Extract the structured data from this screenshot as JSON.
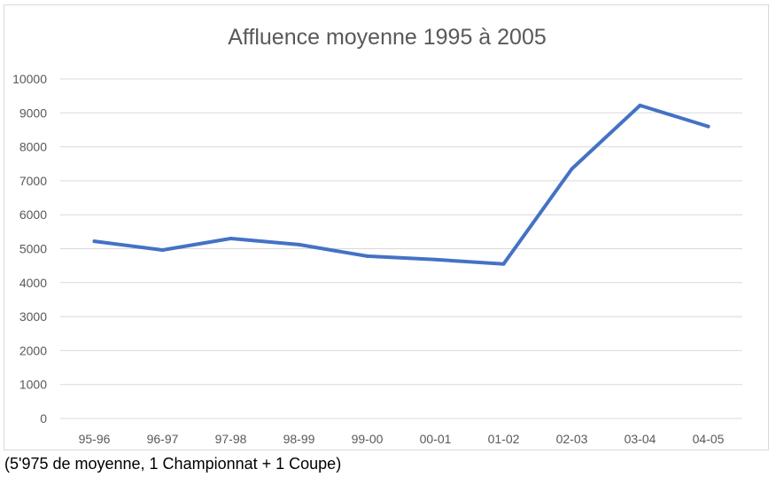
{
  "chart_data": {
    "type": "line",
    "title": "Affluence moyenne 1995 à 2005",
    "xlabel": "",
    "ylabel": "",
    "categories": [
      "95-96",
      "96-97",
      "97-98",
      "98-99",
      "99-00",
      "00-01",
      "01-02",
      "02-03",
      "03-04",
      "04-05"
    ],
    "series": [
      {
        "values": [
          5220,
          4960,
          5300,
          5120,
          4780,
          4680,
          4550,
          7350,
          9220,
          8600
        ],
        "color": "#4472c4"
      }
    ],
    "ylim": [
      0,
      10000
    ],
    "yticks": [
      "0",
      "1000",
      "2000",
      "3000",
      "4000",
      "5000",
      "6000",
      "7000",
      "8000",
      "9000",
      "10000"
    ],
    "grid": true,
    "legend": "none"
  },
  "caption": "(5'975 de moyenne, 1 Championnat + 1 Coupe)"
}
